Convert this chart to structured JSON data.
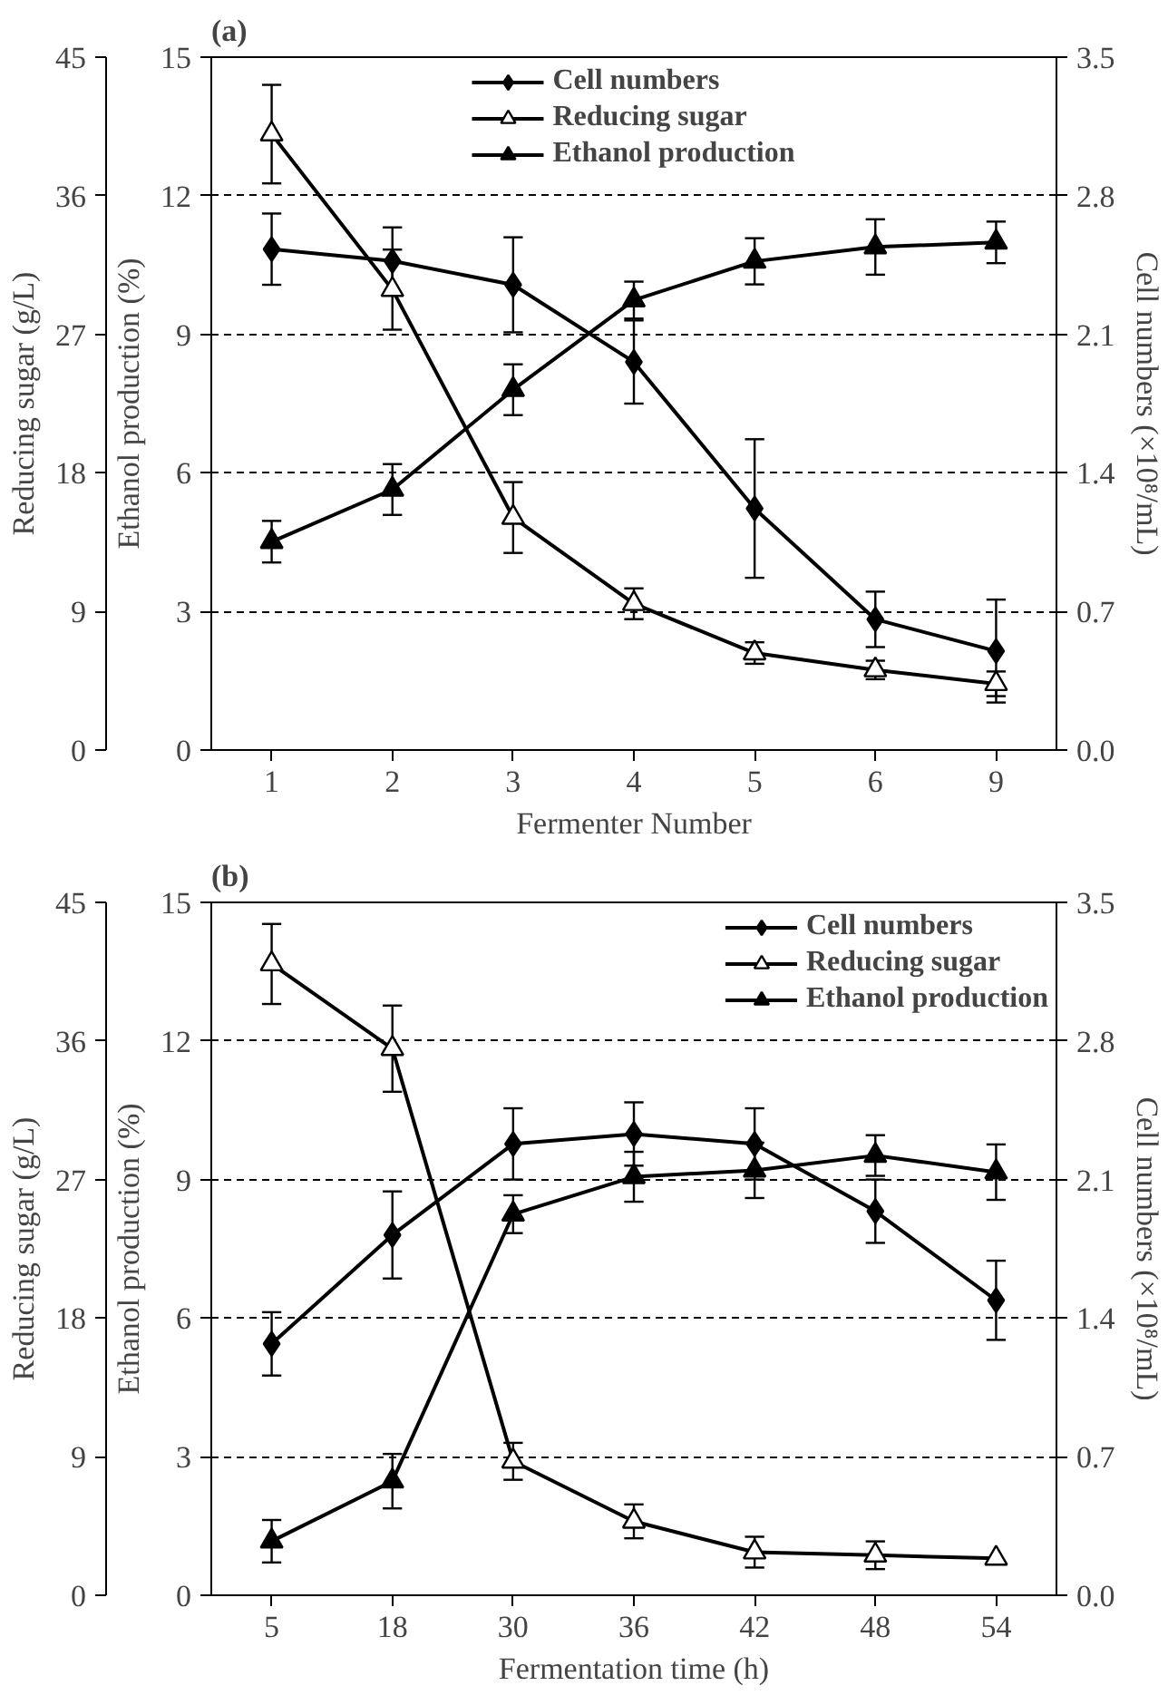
{
  "chart_data": [
    {
      "type": "line",
      "title": "(a)",
      "xlabel": "Fermenter Number",
      "ylabel": "Ethanol production (%)",
      "y2label": "Cell numbers (×10⁸/mL)",
      "y3label": "Reducing sugar (g/L)",
      "categories": [
        "1",
        "2",
        "3",
        "4",
        "5",
        "6",
        "9"
      ],
      "ylim": [
        0,
        15
      ],
      "yticks": [
        0,
        3,
        6,
        9,
        12,
        15
      ],
      "y2lim": [
        0,
        3.5
      ],
      "y2ticks": [
        {
          "value": 0,
          "label": "0.0"
        },
        0.7,
        1.4,
        2.1,
        2.8,
        3.5
      ],
      "y3lim": [
        0,
        45
      ],
      "y3ticks": [
        0,
        9,
        18,
        27,
        36,
        45
      ],
      "grid": "y",
      "legend": "top",
      "line_style": "solid",
      "series": [
        {
          "name": "Cell numbers",
          "color": "#000000",
          "axis": "y2",
          "marker": "diamond",
          "values": [
            2.53,
            2.47,
            2.35,
            1.96,
            1.22,
            0.66,
            0.5
          ],
          "errors": [
            0.18,
            0.17,
            0.24,
            0.21,
            0.35,
            0.14,
            0.26
          ]
        },
        {
          "name": "Reducing sugar",
          "color": "#000000",
          "axis": "y3",
          "marker": "triangle",
          "values": [
            40.0,
            29.9,
            15.1,
            9.5,
            6.3,
            5.2,
            4.3
          ],
          "errors": [
            3.2,
            2.6,
            2.3,
            1.0,
            0.7,
            0.6,
            0.8
          ]
        },
        {
          "name": "Ethanol production",
          "color": "#000000",
          "axis": "y",
          "marker": "triangle",
          "values": [
            4.51,
            5.64,
            7.8,
            9.74,
            10.58,
            10.89,
            10.99
          ],
          "errors": [
            0.45,
            0.55,
            0.55,
            0.4,
            0.5,
            0.6,
            0.45
          ]
        }
      ]
    },
    {
      "type": "line",
      "title": "(b)",
      "xlabel": "Fermentation time (h)",
      "ylabel": "Ethanol production (%)",
      "y2label": "Cell numbers (×10⁸/mL)",
      "y3label": "Reducing sugar (g/L)",
      "categories": [
        "5",
        "18",
        "30",
        "36",
        "42",
        "48",
        "54"
      ],
      "ylim": [
        0,
        15
      ],
      "yticks": [
        0,
        3,
        6,
        9,
        12,
        15
      ],
      "y2lim": [
        0,
        3.5
      ],
      "y2ticks": [
        {
          "value": 0,
          "label": "0.0"
        },
        0.7,
        1.4,
        2.1,
        2.8,
        3.5
      ],
      "y3lim": [
        0,
        45
      ],
      "y3ticks": [
        0,
        9,
        18,
        27,
        36,
        45
      ],
      "grid": "y",
      "legend": "top right",
      "line_style": "solid",
      "series": [
        {
          "name": "Cell numbers",
          "color": "#000000",
          "axis": "y2",
          "marker": "diamond",
          "values": [
            1.27,
            1.82,
            2.28,
            2.33,
            2.28,
            1.94,
            1.49
          ],
          "errors": [
            0.16,
            0.22,
            0.18,
            0.16,
            0.18,
            0.16,
            0.2
          ]
        },
        {
          "name": "Reducing sugar",
          "color": "#000000",
          "axis": "y3",
          "marker": "triangle",
          "values": [
            41.0,
            35.5,
            8.7,
            4.8,
            2.8,
            2.6,
            2.4
          ],
          "errors": [
            2.6,
            2.8,
            1.2,
            1.1,
            1.0,
            0.9,
            null
          ]
        },
        {
          "name": "Ethanol production",
          "color": "#000000",
          "axis": "y",
          "marker": "triangle",
          "values": [
            1.17,
            2.47,
            8.25,
            9.06,
            9.2,
            9.52,
            9.16
          ],
          "errors": [
            0.46,
            0.59,
            0.41,
            0.54,
            0.6,
            0.44,
            0.6
          ]
        }
      ]
    }
  ]
}
